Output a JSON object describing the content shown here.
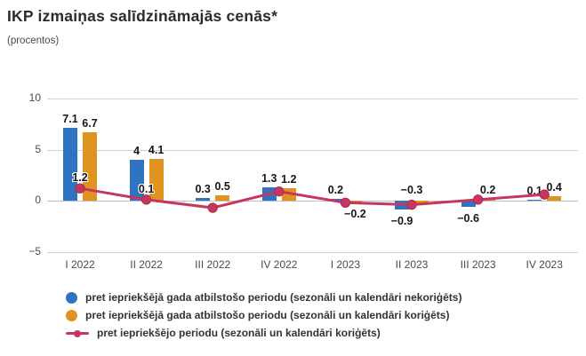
{
  "header": {
    "title": "IKP izmaiņas salīdzināmajās cenās*",
    "subtitle": "(procentos)"
  },
  "colors": {
    "bar_blue": "#2E74C0",
    "bar_orange": "#E0941F",
    "line_red": "#C5375F",
    "line_red_edge": "#AF2C50",
    "grid": "#D2D2D6",
    "axis_text": "#4A4A4A",
    "label_text": "#161616"
  },
  "chart_data": {
    "type": "combo",
    "title": "IKP izmaiņas salīdzināmajās cenās*",
    "subtitle": "(procentos)",
    "categories": [
      "I 2022",
      "II 2022",
      "III 2022",
      "IV 2022",
      "I 2023",
      "II 2023",
      "III 2023",
      "IV 2023"
    ],
    "series": [
      {
        "name": "pret iepriekšējā gada atbilstošo periodu (sezonāli un kalendāri nekoriģēts)",
        "type": "column",
        "color_key": "bar_blue",
        "values": [
          7.1,
          4,
          0.3,
          1.3,
          0.2,
          -0.9,
          -0.6,
          0.1
        ],
        "labels": [
          "7.1",
          "4",
          "0.3",
          "1.3",
          "0.2",
          "−0.9",
          "−0.6",
          "0.1"
        ]
      },
      {
        "name": "pret iepriekšējā gada atbilstošo periodu (sezonāli un kalendāri koriģēts)",
        "type": "column",
        "color_key": "bar_orange",
        "values": [
          6.7,
          4.1,
          0.5,
          1.2,
          -0.2,
          -0.3,
          0.2,
          0.4
        ],
        "labels": [
          "6.7",
          "4.1",
          "0.5",
          "1.2",
          "−0.2",
          "−0.3",
          "0.2",
          "0.4"
        ]
      },
      {
        "name": "pret iepriekšējo periodu (sezonāli un kalendāri koriģēts)",
        "type": "line",
        "color_key": "line_red",
        "values": [
          1.2,
          0.1,
          -0.7,
          0.9,
          -0.2,
          -0.4,
          0.1,
          0.6
        ],
        "labels": [
          "1.2",
          "0.1",
          "",
          "",
          "",
          "",
          "",
          ""
        ]
      }
    ],
    "ylim": [
      -5,
      10
    ],
    "yticks": [
      10,
      5,
      0,
      -5
    ],
    "ytick_labels": [
      "10",
      "5",
      "0",
      "−5"
    ],
    "grid": true,
    "legend_position": "bottom-left",
    "label_overrides": [
      {
        "series": 1,
        "index": 5,
        "position": "above"
      }
    ]
  }
}
